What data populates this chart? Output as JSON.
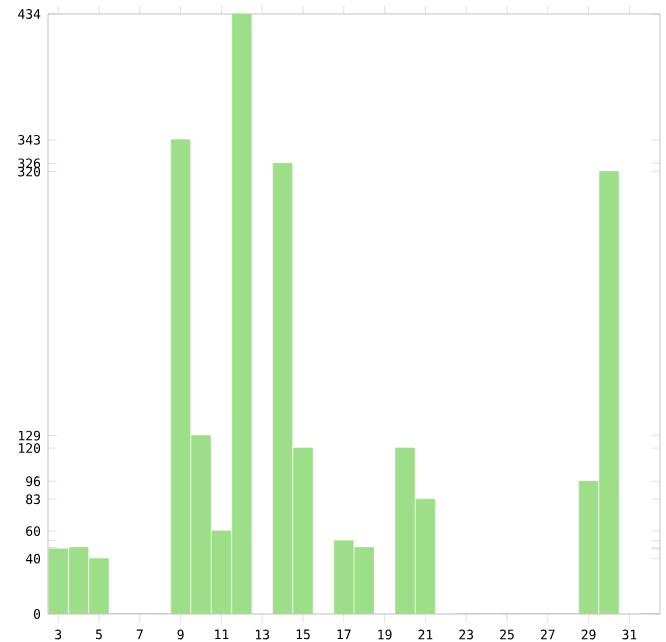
{
  "chart_data": {
    "type": "bar",
    "categories": [
      "3",
      null,
      "5",
      null,
      "7",
      null,
      "9",
      null,
      "11",
      null,
      "13",
      null,
      "15",
      null,
      "17",
      null,
      "19",
      null,
      "21",
      null,
      "23",
      null,
      "25",
      null,
      "27",
      null,
      "29",
      null,
      "31",
      null
    ],
    "values": [
      47,
      48,
      40,
      0,
      0,
      0,
      343,
      129,
      60,
      434,
      null,
      326,
      120,
      null,
      53,
      48,
      null,
      120,
      83,
      null,
      0,
      0,
      0,
      0,
      0,
      0,
      96,
      320,
      null,
      0
    ],
    "color": "#9ddf88",
    "ylim": [
      0,
      434
    ],
    "yticks": [
      0,
      40,
      {
        "value": 47,
        "label": null
      },
      {
        "value": 48,
        "label": null
      },
      {
        "value": 53,
        "label": null
      },
      60,
      83,
      96,
      120,
      129,
      320,
      326,
      343,
      434
    ],
    "grid": false
  }
}
